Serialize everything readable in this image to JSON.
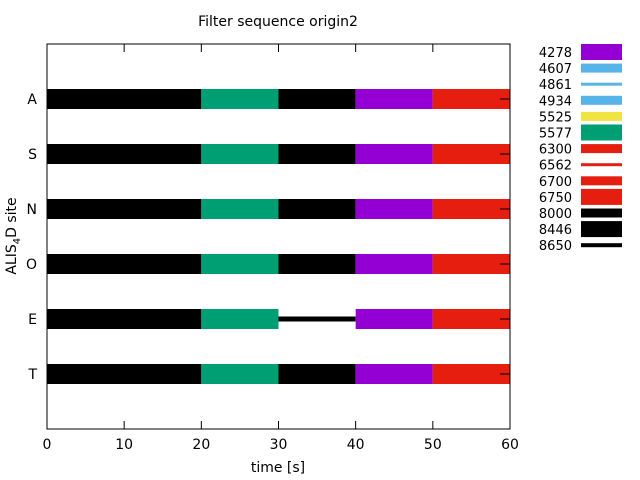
{
  "chart_data": {
    "type": "bar",
    "title": "Filter sequence origin2",
    "xlabel": "time [s]",
    "ylabel_main": "ALIS",
    "ylabel_sub": "4",
    "ylabel_tail": "D site",
    "xlim": [
      0,
      60
    ],
    "xticks": [
      0,
      10,
      20,
      30,
      40,
      50,
      60
    ],
    "categories": [
      "A",
      "S",
      "N",
      "O",
      "E",
      "T"
    ],
    "grid": false,
    "legend_position": "right",
    "legend": [
      {
        "label": "4278",
        "color": "#9400d3",
        "style": "thick"
      },
      {
        "label": "4607",
        "color": "#56b4e9",
        "style": "medium"
      },
      {
        "label": "4861",
        "color": "#56b4e9",
        "style": "thin"
      },
      {
        "label": "4934",
        "color": "#56b4e9",
        "style": "medium"
      },
      {
        "label": "5525",
        "color": "#f0e442",
        "style": "medium"
      },
      {
        "label": "5577",
        "color": "#009e73",
        "style": "thick"
      },
      {
        "label": "6300",
        "color": "#e51e10",
        "style": "medium"
      },
      {
        "label": "6562",
        "color": "#e51e10",
        "style": "thin"
      },
      {
        "label": "6700",
        "color": "#e51e10",
        "style": "medium"
      },
      {
        "label": "6750",
        "color": "#e51e10",
        "style": "thick"
      },
      {
        "label": "8000",
        "color": "#000000",
        "style": "medium"
      },
      {
        "label": "8446",
        "color": "#000000",
        "style": "thick"
      },
      {
        "label": "8650",
        "color": "#000000",
        "style": "line"
      }
    ],
    "series": [
      {
        "site": "A",
        "segments": [
          {
            "start": 0,
            "end": 20,
            "filter": "8446"
          },
          {
            "start": 20,
            "end": 30,
            "filter": "5577"
          },
          {
            "start": 30,
            "end": 40,
            "filter": "8446"
          },
          {
            "start": 40,
            "end": 50,
            "filter": "4278"
          },
          {
            "start": 50,
            "end": 60,
            "filter": "6750"
          }
        ]
      },
      {
        "site": "S",
        "segments": [
          {
            "start": 0,
            "end": 20,
            "filter": "8446"
          },
          {
            "start": 20,
            "end": 30,
            "filter": "5577"
          },
          {
            "start": 30,
            "end": 40,
            "filter": "8446"
          },
          {
            "start": 40,
            "end": 50,
            "filter": "4278"
          },
          {
            "start": 50,
            "end": 60,
            "filter": "6750"
          }
        ]
      },
      {
        "site": "N",
        "segments": [
          {
            "start": 0,
            "end": 20,
            "filter": "8446"
          },
          {
            "start": 20,
            "end": 30,
            "filter": "5577"
          },
          {
            "start": 30,
            "end": 40,
            "filter": "8446"
          },
          {
            "start": 40,
            "end": 50,
            "filter": "4278"
          },
          {
            "start": 50,
            "end": 60,
            "filter": "6750"
          }
        ]
      },
      {
        "site": "O",
        "segments": [
          {
            "start": 0,
            "end": 20,
            "filter": "8446"
          },
          {
            "start": 20,
            "end": 30,
            "filter": "5577"
          },
          {
            "start": 30,
            "end": 40,
            "filter": "8446"
          },
          {
            "start": 40,
            "end": 50,
            "filter": "4278"
          },
          {
            "start": 50,
            "end": 60,
            "filter": "6750"
          }
        ]
      },
      {
        "site": "E",
        "segments": [
          {
            "start": 0,
            "end": 20,
            "filter": "8446"
          },
          {
            "start": 20,
            "end": 30,
            "filter": "5577"
          },
          {
            "start": 30,
            "end": 40,
            "filter": "8650"
          },
          {
            "start": 40,
            "end": 50,
            "filter": "4278"
          },
          {
            "start": 50,
            "end": 60,
            "filter": "6750"
          }
        ]
      },
      {
        "site": "T",
        "segments": [
          {
            "start": 0,
            "end": 20,
            "filter": "8446"
          },
          {
            "start": 20,
            "end": 30,
            "filter": "5577"
          },
          {
            "start": 30,
            "end": 40,
            "filter": "8446"
          },
          {
            "start": 40,
            "end": 50,
            "filter": "4278"
          },
          {
            "start": 50,
            "end": 60,
            "filter": "6750"
          }
        ]
      }
    ]
  }
}
